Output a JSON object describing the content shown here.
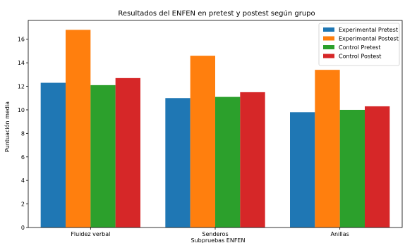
{
  "chart_data": {
    "type": "bar",
    "title": "Resultados del ENFEN en pretest y postest según grupo",
    "xlabel": "Subpruebas ENFEN",
    "ylabel": "Puntuación media",
    "categories": [
      "Fluidez verbal",
      "Senderos",
      "Anillas"
    ],
    "ylim": [
      0,
      17.6
    ],
    "yticks": [
      0,
      2,
      4,
      6,
      8,
      10,
      12,
      14,
      16
    ],
    "grid": false,
    "legend_position": "top-right",
    "series": [
      {
        "name": "Experimental Pretest",
        "color": "#1f77b4",
        "values": [
          12.3,
          11.0,
          9.8
        ]
      },
      {
        "name": "Experimental Postest",
        "color": "#ff7f0e",
        "values": [
          16.8,
          14.6,
          13.4
        ]
      },
      {
        "name": "Control Pretest",
        "color": "#2ca02c",
        "values": [
          12.1,
          11.1,
          10.0
        ]
      },
      {
        "name": "Control Postest",
        "color": "#d62728",
        "values": [
          12.7,
          11.5,
          10.3
        ]
      }
    ]
  }
}
